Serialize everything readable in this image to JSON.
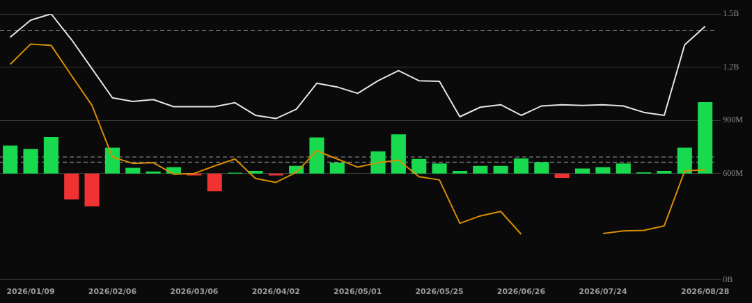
{
  "chart_data": {
    "type": "bar",
    "categories": [
      null,
      "2026/01/09",
      null,
      null,
      null,
      "2026/02/06",
      null,
      null,
      null,
      "2026/03/06",
      null,
      null,
      null,
      "2026/04/02",
      null,
      null,
      null,
      "2026/05/01",
      null,
      null,
      null,
      "2026/05/25",
      null,
      null,
      null,
      "2026/06/26",
      null,
      null,
      null,
      "2026/07/24",
      null,
      null,
      null,
      null,
      "2026/08/28"
    ],
    "series": [
      {
        "base": [
          600000000,
          600000000,
          600000000,
          600000000,
          600000000,
          600000000,
          600000000,
          600000000,
          600000000,
          600000000,
          600000000,
          600000000,
          600000000,
          600000000,
          600000000,
          600000000,
          600000000,
          null,
          600000000,
          600000000,
          600000000,
          600000000,
          600000000,
          600000000,
          600000000,
          600000000,
          600000000,
          600000000,
          600000000,
          600000000,
          600000000,
          600000000,
          600000000,
          600000000,
          600000000
        ],
        "values": [
          157000000,
          139000000,
          206000000,
          -146000000,
          -185000000,
          146000000,
          32000000,
          11000000,
          36000000,
          -11000000,
          -100000000,
          5000000,
          14000000,
          -11000000,
          43000000,
          203000000,
          61000000,
          null,
          125000000,
          221000000,
          82000000,
          57000000,
          14000000,
          43000000,
          43000000,
          85000000,
          64000000,
          -25000000,
          28000000,
          36000000,
          57000000,
          7000000,
          14000000,
          146000000,
          402000000
        ],
        "colors": [
          "#19d94f",
          "#19d94f",
          "#19d94f",
          "#f03232",
          "#f03232",
          "#19d94f",
          "#19d94f",
          "#19d94f",
          "#19d94f",
          "#f03232",
          "#f03232",
          "#19d94f",
          "#19d94f",
          "#f03232",
          "#19d94f",
          "#19d94f",
          "#19d94f",
          "#19d94f",
          "#19d94f",
          "#19d94f",
          "#19d94f",
          "#19d94f",
          "#19d94f",
          "#19d94f",
          "#19d94f",
          "#19d94f",
          "#19d94f",
          "#f03232",
          "#19d94f",
          "#19d94f",
          "#19d94f",
          "#19d94f",
          "#19d94f",
          "#19d94f",
          "#19d94f"
        ]
      },
      {
        "type": "line",
        "color": "#e6e6e6",
        "values": [
          1369000000,
          1465000000,
          1500000000,
          1355000000,
          1191000000,
          1027000000,
          1006000000,
          1017000000,
          977000000,
          977000000,
          977000000,
          999000000,
          928000000,
          910000000,
          963000000,
          1109000000,
          1088000000,
          1052000000,
          1123000000,
          1180000000,
          1123000000,
          1120000000,
          920000000,
          974000000,
          988000000,
          928000000,
          981000000,
          988000000,
          984000000,
          988000000,
          981000000,
          945000000,
          928000000,
          1326000000,
          1429000000
        ]
      },
      {
        "type": "line",
        "color": "#d98e04",
        "values": [
          1216000000,
          1330000000,
          1323000000,
          1152000000,
          984000000,
          693000000,
          657000000,
          661000000,
          596000000,
          600000000,
          643000000,
          682000000,
          572000000,
          550000000,
          607000000,
          728000000,
          682000000,
          636000000,
          661000000,
          675000000,
          582000000,
          564000000,
          319000000,
          361000000,
          386000000,
          258000000,
          null,
          null,
          null,
          262000000,
          276000000,
          279000000,
          305000000,
          614000000,
          621000000
        ]
      }
    ],
    "ylim": [
      0,
      1500000000
    ],
    "yticks": [
      {
        "value": 0,
        "label": "0B"
      },
      {
        "value": 600000000,
        "label": "600M"
      },
      {
        "value": 900000000,
        "label": "900M"
      },
      {
        "value": 1200000000,
        "label": "1.2B"
      },
      {
        "value": 1500000000,
        "label": "1.5B"
      }
    ],
    "ref_lines": [
      {
        "axis": "y",
        "value": 1408000000,
        "color": "#9a9a9a",
        "line_style": "dashed"
      },
      {
        "axis": "y",
        "value": 693000000,
        "color": "#9a9a9a",
        "line_style": "dashed"
      },
      {
        "axis": "y",
        "value": 664000000,
        "color": "#9a9a9a",
        "line_style": "dashed"
      }
    ],
    "grid": "y",
    "legend": false,
    "marker": "none",
    "line_style": "solid"
  }
}
